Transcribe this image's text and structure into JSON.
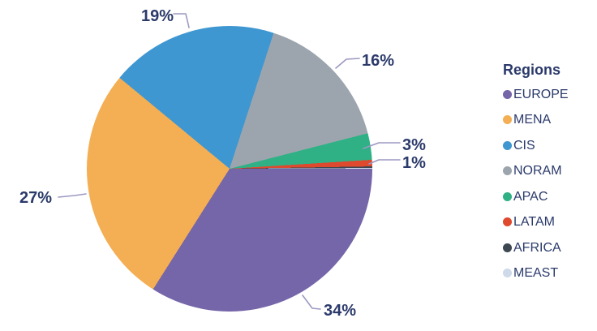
{
  "colors": {
    "text": "#2b3a6b",
    "callout_line": "#9b99c2",
    "background": "#ffffff"
  },
  "chart_data": {
    "type": "pie",
    "title": "",
    "legend_title": "Regions",
    "legend_position": "right",
    "start_angle_deg": 0,
    "direction": "clockwise",
    "values_unit": "%",
    "series": [
      {
        "name": "EUROPE",
        "value": 34,
        "label": "34%",
        "color": "#7565a9",
        "sweep_deg": 122.4
      },
      {
        "name": "MENA",
        "value": 27,
        "label": "27%",
        "color": "#f4ae53",
        "sweep_deg": 97.2
      },
      {
        "name": "CIS",
        "value": 19,
        "label": "19%",
        "color": "#3e97d1",
        "sweep_deg": 68.4
      },
      {
        "name": "NORAM",
        "value": 16,
        "label": "16%",
        "color": "#9ca5ae",
        "sweep_deg": 57.6
      },
      {
        "name": "APAC",
        "value": 3,
        "label": "3%",
        "color": "#2fb185",
        "sweep_deg": 10.8
      },
      {
        "name": "LATAM",
        "value": 1,
        "label": "1%",
        "color": "#df492e",
        "sweep_deg": 2.65
      },
      {
        "name": "AFRICA",
        "value": 0,
        "label": "",
        "color": "#3d4751",
        "sweep_deg": 0.65
      },
      {
        "name": "MEAST",
        "value": 0,
        "label": "",
        "color": "#cedae9",
        "sweep_deg": 0.3
      }
    ]
  }
}
